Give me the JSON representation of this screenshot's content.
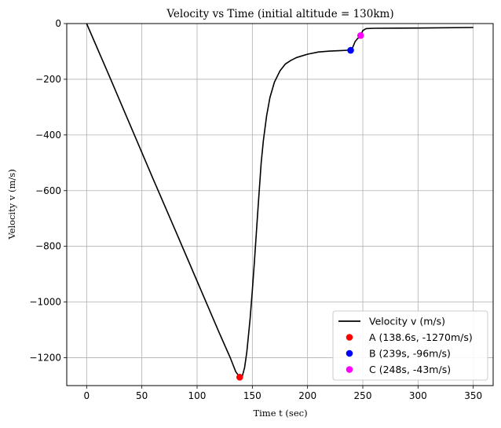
{
  "chart_data": {
    "type": "line",
    "title": "Velocity vs Time (initial altitude = 130km)",
    "xlabel": "Time t (sec)",
    "ylabel": "Velocity v (m/s)",
    "xlim": [
      -18,
      368
    ],
    "ylim": [
      -1300,
      0
    ],
    "xticks": [
      0,
      50,
      100,
      150,
      200,
      250,
      300,
      350
    ],
    "yticks": [
      -1200,
      -1000,
      -800,
      -600,
      -400,
      -200,
      0
    ],
    "xtick_labels": [
      "0",
      "50",
      "100",
      "150",
      "200",
      "250",
      "300",
      "350"
    ],
    "ytick_labels": [
      "−1200",
      "−1000",
      "−800",
      "−600",
      "−400",
      "−200",
      "0"
    ],
    "grid": true,
    "legend_position": "lower-right",
    "series": [
      {
        "name": "Velocity v (m/s)",
        "color": "#000000",
        "x": [
          0,
          20,
          40,
          60,
          80,
          100,
          120,
          130,
          135,
          138.6,
          141,
          143,
          145,
          148,
          150,
          152,
          155,
          158,
          160,
          163,
          166,
          170,
          175,
          180,
          185,
          190,
          200,
          210,
          220,
          230,
          236,
          239,
          241,
          243,
          245,
          246,
          248,
          250,
          253,
          260,
          300,
          350
        ],
        "y": [
          0,
          -184,
          -370,
          -556,
          -740,
          -925,
          -1110,
          -1200,
          -1250,
          -1270,
          -1265,
          -1235,
          -1180,
          -1060,
          -960,
          -850,
          -670,
          -500,
          -420,
          -330,
          -265,
          -210,
          -170,
          -145,
          -132,
          -122,
          -110,
          -102,
          -99,
          -97,
          -96,
          -96,
          -85,
          -65,
          -55,
          -52,
          -43,
          -25,
          -18,
          -17,
          -16,
          -14
        ]
      }
    ],
    "points": [
      {
        "name": "A (138.6s, -1270m/s)",
        "x": 138.6,
        "y": -1270,
        "color": "#ff0000"
      },
      {
        "name": "B (239s, -96m/s)",
        "x": 239,
        "y": -96,
        "color": "#0000ff"
      },
      {
        "name": "C (248s, -43m/s)",
        "x": 248,
        "y": -43,
        "color": "#ff00ff"
      }
    ]
  }
}
